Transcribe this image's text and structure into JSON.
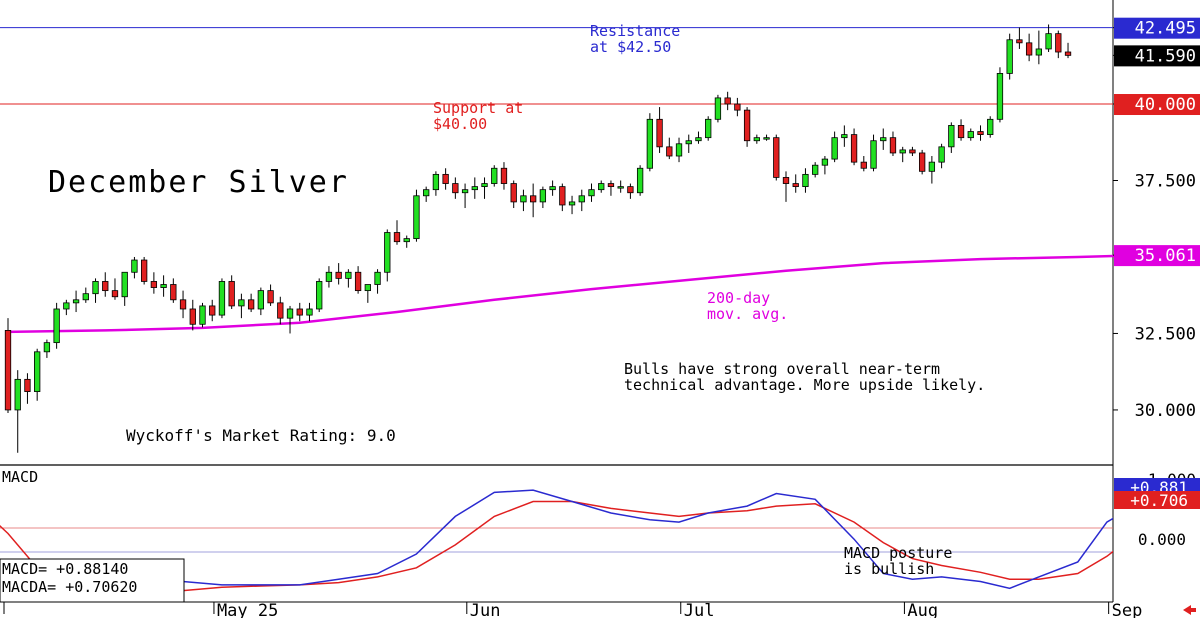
{
  "title": "December Silver",
  "rating": "Wyckoff's Market Rating: 9.0",
  "annotations": [
    {
      "id": "resistance",
      "lines": [
        "Resistance",
        "at $42.50"
      ],
      "color": "#2a2ad0"
    },
    {
      "id": "support",
      "lines": [
        "Support at",
        "$40.00"
      ],
      "color": "#e02020"
    },
    {
      "id": "ma",
      "lines": [
        "200-day",
        "mov. avg."
      ],
      "color": "#e000e0"
    },
    {
      "id": "comment",
      "lines": [
        "Bulls have strong overall near-term",
        "technical advantage. More upside likely."
      ],
      "color": "#000000"
    },
    {
      "id": "macd-note",
      "lines": [
        "MACD posture",
        "is bullish"
      ],
      "color": "#000000"
    }
  ],
  "price_axis": {
    "ticks": [
      "42.495",
      "41.590",
      "40.000",
      "37.500",
      "35.061",
      "32.500",
      "30.000"
    ],
    "badges": [
      {
        "value": 42.495,
        "text": "42.495",
        "bg": "#2a2ad0",
        "fg": "#ffffff"
      },
      {
        "value": 41.59,
        "text": "41.590",
        "bg": "#000000",
        "fg": "#ffffff"
      },
      {
        "value": 40.0,
        "text": "40.000",
        "bg": "#e02020",
        "fg": "#ffffff"
      },
      {
        "value": 35.061,
        "text": "35.061",
        "bg": "#e000e0",
        "fg": "#ffffff"
      }
    ]
  },
  "macd_panel": {
    "label": "MACD",
    "readout": [
      {
        "name": "MACD=",
        "value": "+0.88140"
      },
      {
        "name": "MACDA=",
        "value": "+0.70620"
      }
    ],
    "badges": [
      {
        "text": "+0.881",
        "bg": "#2a2ad0",
        "fg": "#ffffff"
      },
      {
        "text": "+0.706",
        "bg": "#e02020",
        "fg": "#ffffff"
      }
    ],
    "ticks": [
      "1.000",
      "0.000"
    ]
  },
  "x_axis": {
    "labels": [
      {
        "text": "May 25",
        "index": 22
      },
      {
        "text": "Jun",
        "index": 48
      },
      {
        "text": "Jul",
        "index": 70
      },
      {
        "text": "Aug",
        "index": 93
      },
      {
        "text": "Sep",
        "index": 114
      }
    ]
  },
  "chart_data": {
    "type": "candlestick",
    "title": "December Silver",
    "ylim": [
      28.2,
      43.4
    ],
    "reference_lines": [
      {
        "name": "Resistance",
        "value": 42.495,
        "color": "#2a2ad0"
      },
      {
        "name": "Support",
        "value": 40.0,
        "color": "#e02020"
      }
    ],
    "candles": [
      [
        32.6,
        33.0,
        29.9,
        30.0
      ],
      [
        30.0,
        31.3,
        28.6,
        31.0
      ],
      [
        31.0,
        31.2,
        30.2,
        30.6
      ],
      [
        30.6,
        32.0,
        30.3,
        31.9
      ],
      [
        31.9,
        32.3,
        31.7,
        32.2
      ],
      [
        32.2,
        33.5,
        32.0,
        33.3
      ],
      [
        33.3,
        33.6,
        33.1,
        33.5
      ],
      [
        33.5,
        33.9,
        33.2,
        33.6
      ],
      [
        33.6,
        34.0,
        33.5,
        33.8
      ],
      [
        33.8,
        34.3,
        33.5,
        34.2
      ],
      [
        34.2,
        34.5,
        33.7,
        33.9
      ],
      [
        33.9,
        34.3,
        33.6,
        33.7
      ],
      [
        33.7,
        34.5,
        33.4,
        34.5
      ],
      [
        34.5,
        35.0,
        34.3,
        34.9
      ],
      [
        34.9,
        35.0,
        34.1,
        34.2
      ],
      [
        34.2,
        34.5,
        33.8,
        34.0
      ],
      [
        34.0,
        34.4,
        33.7,
        34.1
      ],
      [
        34.1,
        34.3,
        33.5,
        33.6
      ],
      [
        33.6,
        33.9,
        33.0,
        33.3
      ],
      [
        33.3,
        33.6,
        32.6,
        32.8
      ],
      [
        32.8,
        33.5,
        32.7,
        33.4
      ],
      [
        33.4,
        33.6,
        32.9,
        33.1
      ],
      [
        33.1,
        34.3,
        33.0,
        34.2
      ],
      [
        34.2,
        34.4,
        33.3,
        33.4
      ],
      [
        33.4,
        33.8,
        33.0,
        33.6
      ],
      [
        33.6,
        33.8,
        33.2,
        33.3
      ],
      [
        33.3,
        34.0,
        33.1,
        33.9
      ],
      [
        33.9,
        34.1,
        33.4,
        33.5
      ],
      [
        33.5,
        33.7,
        32.8,
        33.0
      ],
      [
        33.0,
        33.4,
        32.5,
        33.3
      ],
      [
        33.3,
        33.5,
        32.9,
        33.1
      ],
      [
        33.1,
        33.5,
        32.9,
        33.3
      ],
      [
        33.3,
        34.3,
        33.2,
        34.2
      ],
      [
        34.2,
        34.7,
        34.0,
        34.5
      ],
      [
        34.5,
        34.8,
        34.1,
        34.3
      ],
      [
        34.3,
        34.6,
        34.0,
        34.5
      ],
      [
        34.5,
        34.7,
        33.8,
        33.9
      ],
      [
        33.9,
        34.1,
        33.5,
        34.1
      ],
      [
        34.1,
        34.6,
        33.8,
        34.5
      ],
      [
        34.5,
        35.9,
        34.2,
        35.8
      ],
      [
        35.8,
        36.2,
        35.4,
        35.5
      ],
      [
        35.5,
        35.7,
        35.3,
        35.6
      ],
      [
        35.6,
        37.2,
        35.5,
        37.0
      ],
      [
        37.0,
        37.3,
        36.8,
        37.2
      ],
      [
        37.2,
        37.8,
        37.0,
        37.7
      ],
      [
        37.7,
        37.9,
        37.2,
        37.4
      ],
      [
        37.4,
        37.6,
        36.9,
        37.1
      ],
      [
        37.1,
        37.4,
        36.6,
        37.2
      ],
      [
        37.2,
        37.6,
        36.9,
        37.3
      ],
      [
        37.3,
        37.6,
        36.9,
        37.4
      ],
      [
        37.4,
        38.0,
        37.3,
        37.9
      ],
      [
        37.9,
        38.1,
        37.2,
        37.4
      ],
      [
        37.4,
        37.5,
        36.6,
        36.8
      ],
      [
        36.8,
        37.2,
        36.5,
        37.0
      ],
      [
        37.0,
        37.4,
        36.3,
        36.8
      ],
      [
        36.8,
        37.3,
        36.6,
        37.2
      ],
      [
        37.2,
        37.5,
        37.0,
        37.3
      ],
      [
        37.3,
        37.4,
        36.5,
        36.7
      ],
      [
        36.7,
        37.0,
        36.4,
        36.8
      ],
      [
        36.8,
        37.2,
        36.5,
        37.0
      ],
      [
        37.0,
        37.4,
        36.8,
        37.2
      ],
      [
        37.2,
        37.5,
        37.1,
        37.4
      ],
      [
        37.4,
        37.5,
        37.0,
        37.3
      ],
      [
        37.3,
        37.5,
        37.1,
        37.3
      ],
      [
        37.3,
        37.4,
        36.9,
        37.1
      ],
      [
        37.1,
        38.0,
        37.0,
        37.9
      ],
      [
        37.9,
        39.7,
        37.8,
        39.5
      ],
      [
        39.5,
        39.9,
        38.4,
        38.6
      ],
      [
        38.6,
        38.9,
        38.2,
        38.3
      ],
      [
        38.3,
        38.9,
        38.1,
        38.7
      ],
      [
        38.7,
        39.0,
        38.4,
        38.8
      ],
      [
        38.8,
        39.1,
        38.7,
        38.9
      ],
      [
        38.9,
        39.6,
        38.8,
        39.5
      ],
      [
        39.5,
        40.3,
        39.4,
        40.2
      ],
      [
        40.2,
        40.4,
        39.8,
        40.0
      ],
      [
        40.0,
        40.2,
        39.6,
        39.8
      ],
      [
        39.8,
        39.9,
        38.6,
        38.8
      ],
      [
        38.8,
        39.0,
        38.7,
        38.9
      ],
      [
        38.9,
        39.0,
        38.8,
        38.9
      ],
      [
        38.9,
        39.0,
        37.5,
        37.6
      ],
      [
        37.6,
        37.8,
        36.8,
        37.4
      ],
      [
        37.4,
        37.7,
        37.1,
        37.3
      ],
      [
        37.3,
        37.9,
        37.1,
        37.7
      ],
      [
        37.7,
        38.1,
        37.6,
        38.0
      ],
      [
        38.0,
        38.3,
        37.7,
        38.2
      ],
      [
        38.2,
        39.1,
        38.1,
        38.9
      ],
      [
        38.9,
        39.3,
        38.6,
        39.0
      ],
      [
        39.0,
        39.2,
        38.0,
        38.1
      ],
      [
        38.1,
        38.3,
        37.8,
        37.9
      ],
      [
        37.9,
        39.0,
        37.8,
        38.8
      ],
      [
        38.8,
        39.2,
        38.5,
        38.9
      ],
      [
        38.9,
        39.1,
        38.3,
        38.4
      ],
      [
        38.4,
        38.6,
        38.1,
        38.5
      ],
      [
        38.5,
        38.6,
        38.3,
        38.4
      ],
      [
        38.4,
        38.5,
        37.7,
        37.8
      ],
      [
        37.8,
        38.3,
        37.4,
        38.1
      ],
      [
        38.1,
        38.7,
        37.9,
        38.6
      ],
      [
        38.6,
        39.4,
        38.4,
        39.3
      ],
      [
        39.3,
        39.5,
        38.8,
        38.9
      ],
      [
        38.9,
        39.2,
        38.8,
        39.1
      ],
      [
        39.1,
        39.3,
        38.8,
        39.0
      ],
      [
        39.0,
        39.6,
        38.9,
        39.5
      ],
      [
        39.5,
        41.2,
        39.4,
        41.0
      ],
      [
        41.0,
        42.3,
        40.8,
        42.1
      ],
      [
        42.1,
        42.5,
        41.8,
        42.0
      ],
      [
        42.0,
        42.3,
        41.4,
        41.6
      ],
      [
        41.6,
        42.4,
        41.3,
        41.8
      ],
      [
        41.8,
        42.6,
        41.7,
        42.3
      ],
      [
        42.3,
        42.4,
        41.5,
        41.7
      ],
      [
        41.7,
        42.0,
        41.5,
        41.59
      ]
    ],
    "ma200": [
      [
        0,
        32.55
      ],
      [
        10,
        32.6
      ],
      [
        20,
        32.68
      ],
      [
        30,
        32.85
      ],
      [
        40,
        33.2
      ],
      [
        50,
        33.6
      ],
      [
        60,
        33.95
      ],
      [
        70,
        34.25
      ],
      [
        80,
        34.55
      ],
      [
        90,
        34.8
      ],
      [
        100,
        34.93
      ],
      [
        110,
        35.0
      ],
      [
        117,
        35.061
      ]
    ],
    "macd": {
      "ylim": [
        -0.1,
        1.1
      ],
      "macd_line": [
        [
          -5,
          0.6
        ],
        [
          0,
          0.2
        ],
        [
          5,
          -0.25
        ],
        [
          10,
          -0.15
        ],
        [
          14,
          0.0
        ],
        [
          18,
          0.08
        ],
        [
          22,
          0.05
        ],
        [
          26,
          0.05
        ],
        [
          30,
          0.05
        ],
        [
          34,
          0.1
        ],
        [
          38,
          0.15
        ],
        [
          42,
          0.32
        ],
        [
          46,
          0.65
        ],
        [
          50,
          0.86
        ],
        [
          54,
          0.88
        ],
        [
          58,
          0.78
        ],
        [
          62,
          0.68
        ],
        [
          66,
          0.62
        ],
        [
          69,
          0.6
        ],
        [
          72,
          0.68
        ],
        [
          76,
          0.74
        ],
        [
          79,
          0.85
        ],
        [
          83,
          0.8
        ],
        [
          87,
          0.45
        ],
        [
          90,
          0.15
        ],
        [
          93,
          0.1
        ],
        [
          96,
          0.12
        ],
        [
          100,
          0.08
        ],
        [
          103,
          0.02
        ],
        [
          106,
          0.12
        ],
        [
          110,
          0.25
        ],
        [
          113,
          0.6
        ],
        [
          116,
          0.75
        ],
        [
          119,
          0.88
        ],
        [
          122,
          0.88
        ]
      ],
      "signal_line": [
        [
          -5,
          0.9
        ],
        [
          0,
          0.5
        ],
        [
          5,
          0.0
        ],
        [
          10,
          -0.1
        ],
        [
          14,
          -0.05
        ],
        [
          18,
          0.0
        ],
        [
          22,
          0.03
        ],
        [
          26,
          0.04
        ],
        [
          30,
          0.05
        ],
        [
          34,
          0.07
        ],
        [
          38,
          0.12
        ],
        [
          42,
          0.2
        ],
        [
          46,
          0.4
        ],
        [
          50,
          0.65
        ],
        [
          54,
          0.78
        ],
        [
          58,
          0.78
        ],
        [
          62,
          0.72
        ],
        [
          66,
          0.68
        ],
        [
          69,
          0.65
        ],
        [
          72,
          0.68
        ],
        [
          76,
          0.7
        ],
        [
          79,
          0.74
        ],
        [
          83,
          0.76
        ],
        [
          87,
          0.6
        ],
        [
          90,
          0.42
        ],
        [
          93,
          0.28
        ],
        [
          96,
          0.22
        ],
        [
          100,
          0.16
        ],
        [
          103,
          0.1
        ],
        [
          106,
          0.1
        ],
        [
          110,
          0.15
        ],
        [
          113,
          0.3
        ],
        [
          116,
          0.5
        ],
        [
          119,
          0.65
        ],
        [
          122,
          0.706
        ]
      ]
    }
  }
}
